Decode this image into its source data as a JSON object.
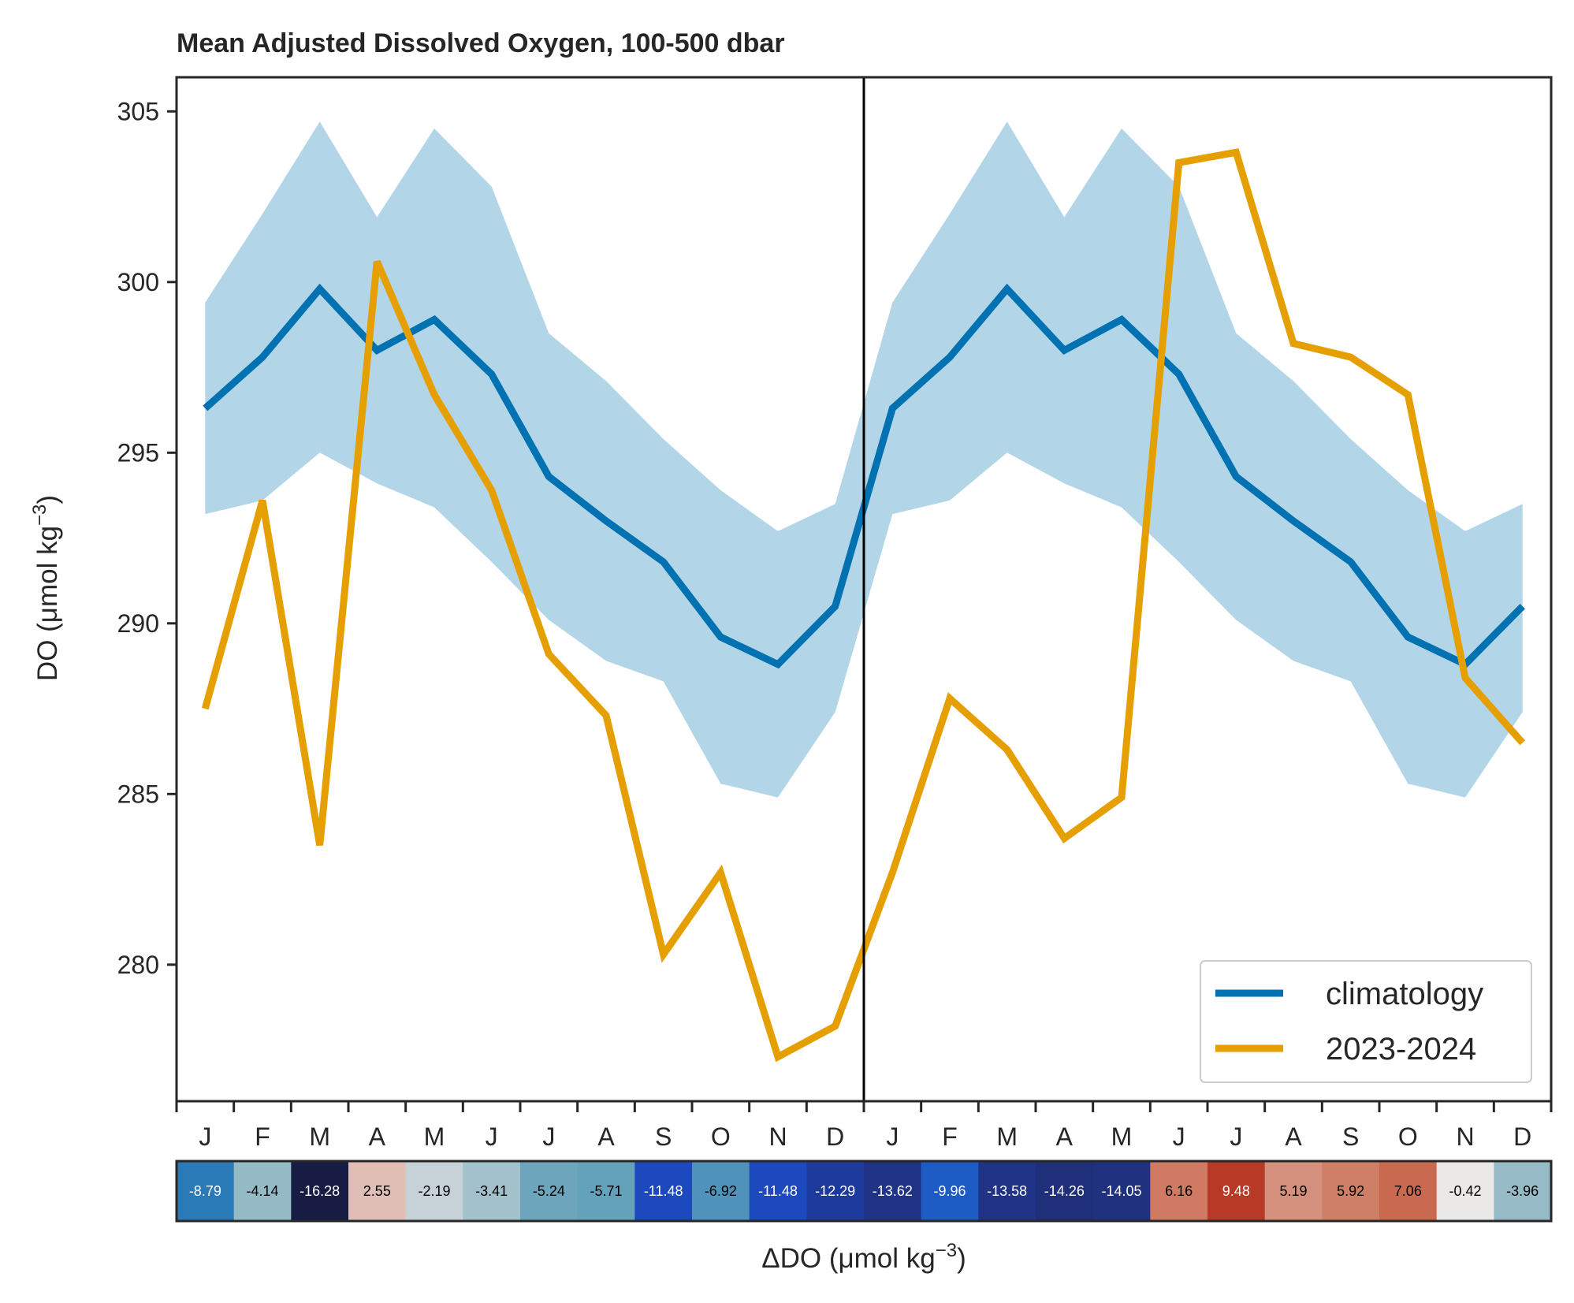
{
  "chart_data": {
    "type": "line",
    "title": "Mean Adjusted Dissolved Oxygen, 100-500 dbar",
    "ylabel": "DO (μmol kg",
    "ylabel_sup": "−3",
    "ylabel_end": ")",
    "ylim": [
      276,
      306
    ],
    "yticks": [
      280,
      285,
      290,
      295,
      300,
      305
    ],
    "xlim": [
      -0.5,
      23.5
    ],
    "month_labels": [
      "J",
      "F",
      "M",
      "A",
      "M",
      "J",
      "J",
      "A",
      "S",
      "O",
      "N",
      "D",
      "J",
      "F",
      "M",
      "A",
      "M",
      "J",
      "J",
      "A",
      "S",
      "O",
      "N",
      "D"
    ],
    "divider_x": 11.5,
    "x": [
      0,
      1,
      2,
      3,
      4,
      5,
      6,
      7,
      8,
      9,
      10,
      11,
      12,
      13,
      14,
      15,
      16,
      17,
      18,
      19,
      20,
      21,
      22,
      23
    ],
    "series": [
      {
        "name": "climatology",
        "color": "#0072b2",
        "values": [
          296.3,
          297.8,
          299.8,
          298.0,
          298.9,
          297.3,
          294.3,
          293.0,
          291.8,
          289.6,
          288.8,
          290.5,
          296.3,
          297.8,
          299.8,
          298.0,
          298.9,
          297.3,
          294.3,
          293.0,
          291.8,
          289.6,
          288.8,
          290.5
        ]
      },
      {
        "name": "2023-2024",
        "color": "#e69f00",
        "values": [
          287.5,
          293.6,
          283.5,
          300.6,
          296.7,
          293.9,
          289.1,
          287.3,
          280.3,
          282.7,
          277.3,
          278.2,
          282.7,
          287.8,
          286.3,
          283.7,
          284.9,
          303.5,
          303.8,
          298.2,
          297.8,
          296.7,
          288.4,
          286.5
        ]
      }
    ],
    "band": {
      "color": "#b3d5e8",
      "upper": [
        299.4,
        302.0,
        304.7,
        301.9,
        304.5,
        302.8,
        298.5,
        297.1,
        295.4,
        293.9,
        292.7,
        293.5,
        299.4,
        302.0,
        304.7,
        301.9,
        304.5,
        302.8,
        298.5,
        297.1,
        295.4,
        293.9,
        292.7,
        293.5
      ],
      "lower": [
        293.2,
        293.6,
        295.0,
        294.1,
        293.4,
        291.8,
        290.1,
        288.9,
        288.3,
        285.3,
        284.9,
        287.4,
        293.2,
        293.6,
        295.0,
        294.1,
        293.4,
        291.8,
        290.1,
        288.9,
        288.3,
        285.3,
        284.9,
        287.4
      ]
    },
    "legend_position": "lower-right",
    "delta_strip": {
      "label": "ΔDO (μmol kg",
      "label_sup": "−3",
      "label_end": ")",
      "values": [
        "-8.79",
        "-4.14",
        "-16.28",
        "2.55",
        "-2.19",
        "-3.41",
        "-5.24",
        "-5.71",
        "-11.48",
        "-6.92",
        "-11.48",
        "-12.29",
        "-13.62",
        "-9.96",
        "-13.58",
        "-14.26",
        "-14.05",
        "6.16",
        "9.48",
        "5.19",
        "5.92",
        "7.06",
        "-0.42",
        "-3.96"
      ],
      "colors": [
        "#2a7ab8",
        "#94bac6",
        "#181c44",
        "#e0beb6",
        "#c6d2d8",
        "#a2c1ca",
        "#6ca5bc",
        "#64a1bb",
        "#1d49bf",
        "#4f93bb",
        "#1d49bf",
        "#1c3b9c",
        "#213387",
        "#1c5cc4",
        "#213387",
        "#1f2f79",
        "#20317f",
        "#d07a63",
        "#b73a27",
        "#d4907c",
        "#d07f67",
        "#c96a50",
        "#ebe8e8",
        "#96bbc6"
      ],
      "text_colors": [
        "#ffffff",
        "#000000",
        "#ffffff",
        "#000000",
        "#000000",
        "#000000",
        "#000000",
        "#000000",
        "#ffffff",
        "#000000",
        "#ffffff",
        "#ffffff",
        "#ffffff",
        "#ffffff",
        "#ffffff",
        "#ffffff",
        "#ffffff",
        "#000000",
        "#ffffff",
        "#000000",
        "#000000",
        "#000000",
        "#000000",
        "#000000"
      ]
    }
  }
}
